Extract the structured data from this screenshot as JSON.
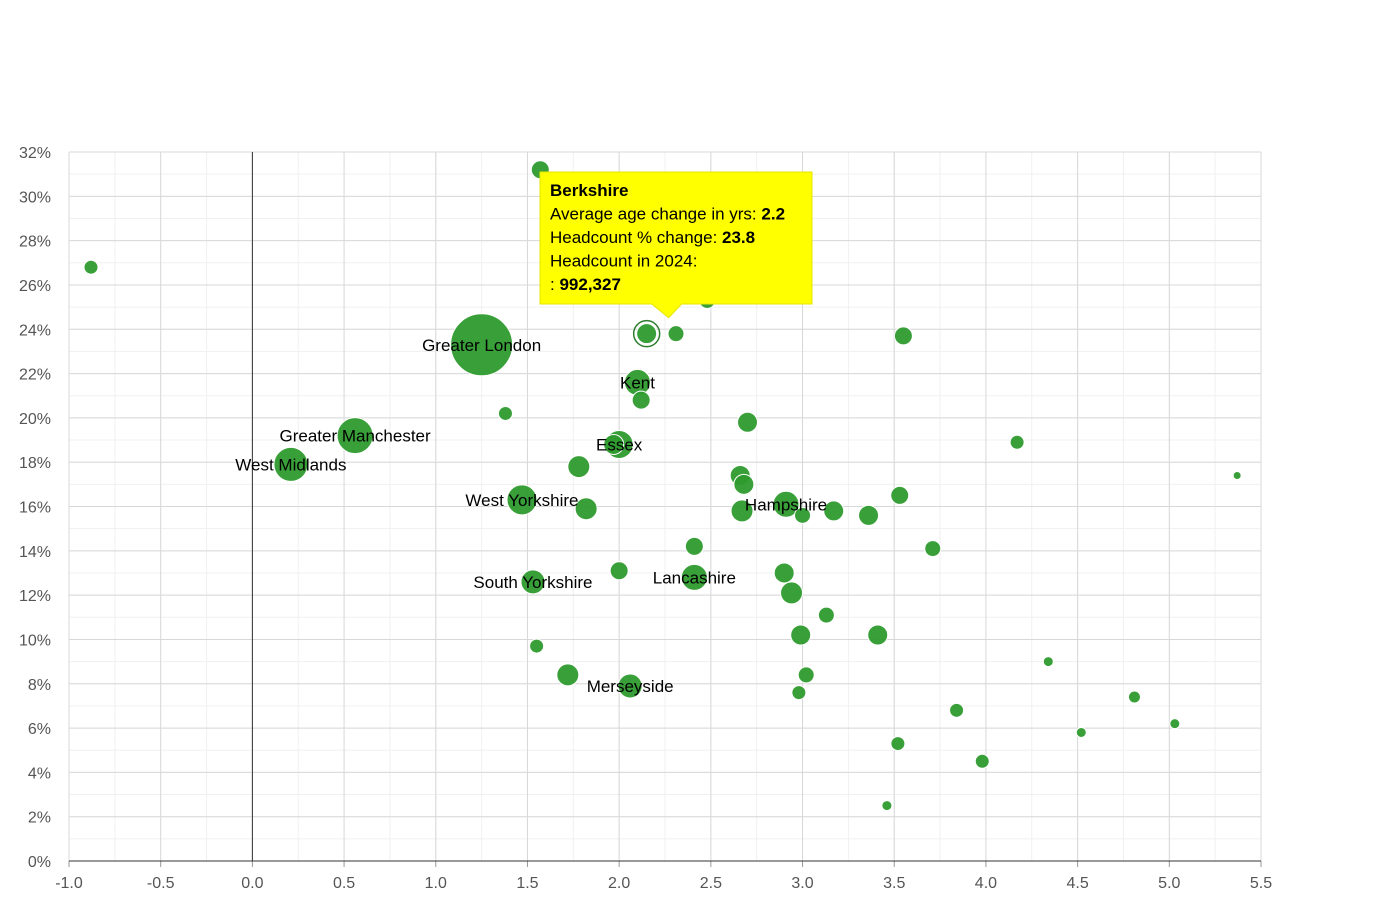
{
  "chart_data": {
    "type": "scatter",
    "variant": "bubble",
    "title": "",
    "xlabel": "",
    "ylabel": "",
    "xlim": [
      -1.0,
      5.5
    ],
    "ylim": [
      0,
      32
    ],
    "x_ticks": [
      "-1.0",
      "-0.5",
      "0.0",
      "0.5",
      "1.0",
      "1.5",
      "2.0",
      "2.5",
      "3.0",
      "3.5",
      "4.0",
      "4.5",
      "5.0",
      "5.5"
    ],
    "y_ticks": [
      "0%",
      "2%",
      "4%",
      "6%",
      "8%",
      "10%",
      "12%",
      "14%",
      "16%",
      "18%",
      "20%",
      "22%",
      "24%",
      "26%",
      "28%",
      "30%",
      "32%"
    ],
    "grid": true,
    "bubble_color": "#2e9b2e",
    "points": [
      {
        "x": 1.25,
        "y": 23.3,
        "r": 31,
        "label": "Greater London"
      },
      {
        "x": 0.56,
        "y": 19.2,
        "r": 18,
        "label": "Greater Manchester"
      },
      {
        "x": 0.21,
        "y": 17.9,
        "r": 17,
        "label": "West Midlands"
      },
      {
        "x": 1.47,
        "y": 16.3,
        "r": 15,
        "label": "West Yorkshire"
      },
      {
        "x": 2.0,
        "y": 18.8,
        "r": 14,
        "label": "Essex"
      },
      {
        "x": 2.1,
        "y": 21.6,
        "r": 13,
        "label": "Kent"
      },
      {
        "x": 2.91,
        "y": 16.1,
        "r": 13,
        "label": "Hampshire"
      },
      {
        "x": 2.41,
        "y": 12.8,
        "r": 13,
        "label": "Lancashire"
      },
      {
        "x": 1.53,
        "y": 12.6,
        "r": 12,
        "label": "South Yorkshire"
      },
      {
        "x": 2.06,
        "y": 7.9,
        "r": 12,
        "label": "Merseyside"
      },
      {
        "x": 2.15,
        "y": 23.8,
        "r": 10,
        "label": ""
      },
      {
        "x": -0.88,
        "y": 26.8,
        "r": 7,
        "label": ""
      },
      {
        "x": 1.57,
        "y": 31.2,
        "r": 9,
        "label": ""
      },
      {
        "x": 2.31,
        "y": 23.8,
        "r": 8,
        "label": ""
      },
      {
        "x": 2.48,
        "y": 25.3,
        "r": 8,
        "label": ""
      },
      {
        "x": 3.55,
        "y": 23.7,
        "r": 9,
        "label": ""
      },
      {
        "x": 1.38,
        "y": 20.2,
        "r": 7,
        "label": ""
      },
      {
        "x": 2.12,
        "y": 20.8,
        "r": 9,
        "label": ""
      },
      {
        "x": 2.7,
        "y": 19.8,
        "r": 10,
        "label": ""
      },
      {
        "x": 4.17,
        "y": 18.9,
        "r": 7,
        "label": ""
      },
      {
        "x": 1.97,
        "y": 18.8,
        "r": 10,
        "label": ""
      },
      {
        "x": 1.78,
        "y": 17.8,
        "r": 11,
        "label": ""
      },
      {
        "x": 2.66,
        "y": 17.4,
        "r": 10,
        "label": ""
      },
      {
        "x": 2.68,
        "y": 17.0,
        "r": 10,
        "label": ""
      },
      {
        "x": 5.37,
        "y": 17.4,
        "r": 4,
        "label": ""
      },
      {
        "x": 1.82,
        "y": 15.9,
        "r": 11,
        "label": ""
      },
      {
        "x": 2.67,
        "y": 15.8,
        "r": 11,
        "label": ""
      },
      {
        "x": 3.0,
        "y": 15.6,
        "r": 8,
        "label": ""
      },
      {
        "x": 3.17,
        "y": 15.8,
        "r": 10,
        "label": ""
      },
      {
        "x": 3.36,
        "y": 15.6,
        "r": 10,
        "label": ""
      },
      {
        "x": 3.53,
        "y": 16.5,
        "r": 9,
        "label": ""
      },
      {
        "x": 2.41,
        "y": 14.2,
        "r": 9,
        "label": ""
      },
      {
        "x": 3.71,
        "y": 14.1,
        "r": 8,
        "label": ""
      },
      {
        "x": 2.0,
        "y": 13.1,
        "r": 9,
        "label": ""
      },
      {
        "x": 2.9,
        "y": 13.0,
        "r": 10,
        "label": ""
      },
      {
        "x": 2.94,
        "y": 12.1,
        "r": 11,
        "label": ""
      },
      {
        "x": 3.13,
        "y": 11.1,
        "r": 8,
        "label": ""
      },
      {
        "x": 2.99,
        "y": 10.2,
        "r": 10,
        "label": ""
      },
      {
        "x": 3.41,
        "y": 10.2,
        "r": 10,
        "label": ""
      },
      {
        "x": 1.55,
        "y": 9.7,
        "r": 7,
        "label": ""
      },
      {
        "x": 4.34,
        "y": 9.0,
        "r": 5,
        "label": ""
      },
      {
        "x": 1.72,
        "y": 8.4,
        "r": 11,
        "label": ""
      },
      {
        "x": 3.02,
        "y": 8.4,
        "r": 8,
        "label": ""
      },
      {
        "x": 2.98,
        "y": 7.6,
        "r": 7,
        "label": ""
      },
      {
        "x": 4.81,
        "y": 7.4,
        "r": 6,
        "label": ""
      },
      {
        "x": 3.84,
        "y": 6.8,
        "r": 7,
        "label": ""
      },
      {
        "x": 5.03,
        "y": 6.2,
        "r": 5,
        "label": ""
      },
      {
        "x": 4.52,
        "y": 5.8,
        "r": 5,
        "label": ""
      },
      {
        "x": 3.52,
        "y": 5.3,
        "r": 7,
        "label": ""
      },
      {
        "x": 3.98,
        "y": 4.5,
        "r": 7,
        "label": ""
      },
      {
        "x": 3.46,
        "y": 2.5,
        "r": 5,
        "label": ""
      }
    ],
    "highlighted_point": {
      "x": 2.15,
      "y": 23.8
    },
    "tooltip": {
      "title": "Berkshire",
      "rows": [
        {
          "label": "Average age change in yrs: ",
          "value": "2.2"
        },
        {
          "label": "Headcount % change: ",
          "value": "23.8"
        },
        {
          "label": "Headcount in 2024:",
          "value": ""
        },
        {
          "label": ": ",
          "value": "992,327"
        }
      ],
      "background": "#ffff00"
    }
  }
}
